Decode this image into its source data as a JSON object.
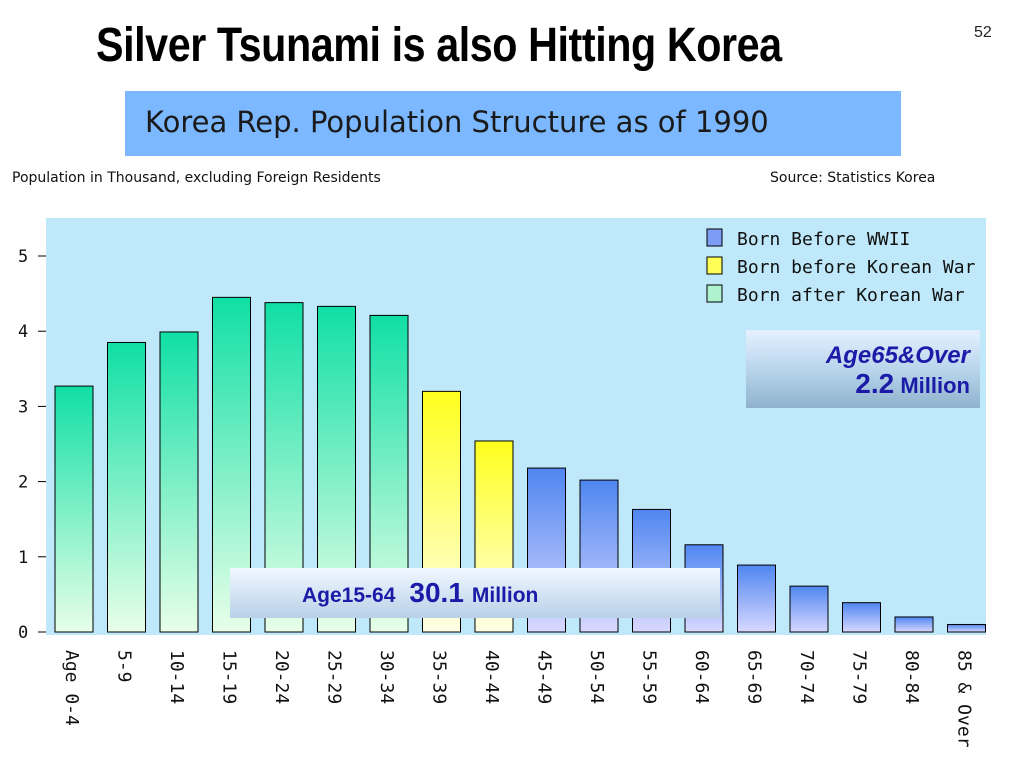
{
  "slide": {
    "title": "Silver Tsunami is also Hitting Korea",
    "page_number": "52",
    "subtitle": "Korea Rep. Population Structure as of 1990",
    "note_left": "Population in Thousand, excluding Foreign Residents",
    "note_right": "Source:  Statistics Korea"
  },
  "callouts": {
    "old_label": "Age65&Over",
    "old_value": "2.2",
    "old_unit": "Million",
    "work_label": "Age15-64",
    "work_value": "30.1",
    "work_unit": "Million"
  },
  "colors": {
    "plot_bg": "#bfe9fb",
    "after_war": "#19e0a8",
    "before_korean_war": "#ffff2a",
    "before_wwii": "#5b8cf0",
    "subtitle_bg": "#7cb8ff",
    "callout_text": "#1b1ba8"
  },
  "chart_data": {
    "type": "bar",
    "title": "Korea Rep. Population Structure as of 1990",
    "ylim": [
      0,
      5.5
    ],
    "yticks": [
      "0",
      "1",
      "2",
      "3",
      "4",
      "5"
    ],
    "grid": false,
    "legend_placement": "top-right",
    "categories": [
      "Age 0-4",
      "5-9",
      "10-14",
      "15-19",
      "20-24",
      "25-29",
      "30-34",
      "35-39",
      "40-44",
      "45-49",
      "50-54",
      "55-59",
      "60-64",
      "65-69",
      "70-74",
      "75-79",
      "80-84",
      "85 & Over"
    ],
    "values": [
      3.27,
      3.85,
      3.99,
      4.45,
      4.38,
      4.33,
      4.21,
      3.2,
      2.54,
      2.18,
      2.02,
      1.63,
      1.16,
      0.89,
      0.61,
      0.39,
      0.2,
      0.1
    ],
    "groups": [
      "after",
      "after",
      "after",
      "after",
      "after",
      "after",
      "after",
      "korean",
      "korean",
      "wwii",
      "wwii",
      "wwii",
      "wwii",
      "wwii",
      "wwii",
      "wwii",
      "wwii",
      "wwii"
    ],
    "legend": [
      {
        "key": "wwii",
        "label": "Born Before WWII"
      },
      {
        "key": "korean",
        "label": "Born before Korean War"
      },
      {
        "key": "after",
        "label": "Born after Korean War"
      }
    ]
  }
}
